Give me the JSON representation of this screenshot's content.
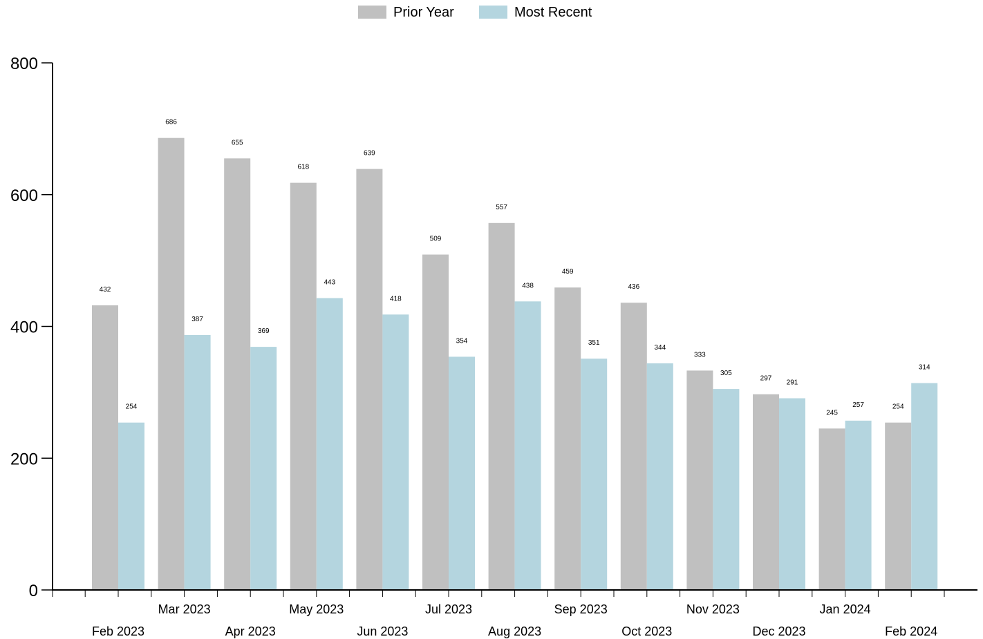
{
  "chart_data": {
    "type": "bar",
    "categories": [
      "Feb 2023",
      "Mar 2023",
      "Apr 2023",
      "May 2023",
      "Jun 2023",
      "Jul 2023",
      "Aug 2023",
      "Sep 2023",
      "Oct 2023",
      "Nov 2023",
      "Dec 2023",
      "Jan 2024",
      "Feb 2024"
    ],
    "series": [
      {
        "name": "Prior Year",
        "color": "#c0c0c0",
        "values": [
          432,
          686,
          655,
          618,
          639,
          509,
          557,
          459,
          436,
          333,
          297,
          245,
          254
        ]
      },
      {
        "name": "Most Recent",
        "color": "#b4d5df",
        "values": [
          254,
          387,
          369,
          443,
          418,
          354,
          438,
          351,
          344,
          305,
          291,
          257,
          314
        ]
      }
    ],
    "yticks": [
      0,
      200,
      400,
      600,
      800
    ],
    "ylim": [
      0,
      800
    ],
    "legend_position": "top-center",
    "grid": false,
    "data_labels": true
  }
}
